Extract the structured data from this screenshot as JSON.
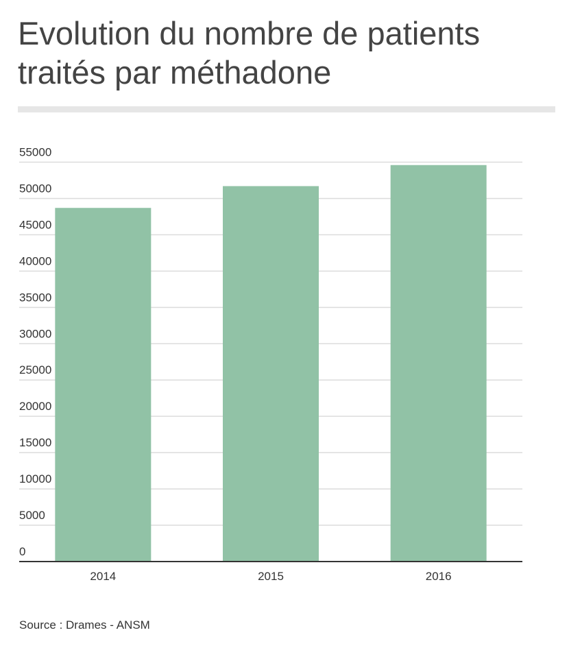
{
  "title": "Evolution du nombre de patients traités par méthadone",
  "source": "Source : Drames - ANSM",
  "chart_data": {
    "type": "bar",
    "categories": [
      "2014",
      "2015",
      "2016"
    ],
    "values": [
      48700,
      51700,
      54600
    ],
    "yticks": [
      "0",
      "5000",
      "10000",
      "15000",
      "20000",
      "25000",
      "30000",
      "35000",
      "40000",
      "45000",
      "50000",
      "55000"
    ],
    "ylim": [
      0,
      55000
    ],
    "grid": true,
    "bar_color": "#91c2a6",
    "xlabel": "",
    "ylabel": ""
  }
}
